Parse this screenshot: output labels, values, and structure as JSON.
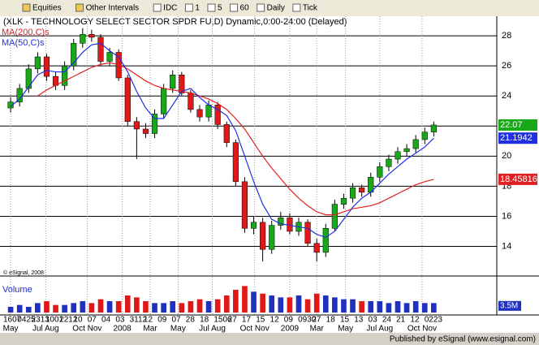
{
  "toolbar": {
    "items": [
      "Equities",
      "Other Intervals",
      "IDC",
      "1",
      "5",
      "60",
      "Daily",
      "Tick"
    ]
  },
  "chart_data": {
    "type": "candlestick",
    "title": "(XLK - TECHNOLOGY SELECT SECTOR SPDR FU,D) Dynamic,0:00-24:00 (Delayed)",
    "copyright": "© eSignal, 2008",
    "footer": "Published by eSignal (www.esignal.com)",
    "up_color": "#18a818",
    "down_color": "#e01818",
    "xlim": [
      -1,
      54
    ],
    "ylim": [
      12.3,
      29.3
    ],
    "yticks": [
      14,
      16,
      18,
      20,
      22,
      24,
      26,
      28
    ],
    "grid": true,
    "open": [
      23.2,
      23.6,
      24.5,
      25.8,
      26.6,
      25.3,
      24.7,
      26.0,
      27.5,
      28.1,
      27.9,
      26.3,
      26.9,
      25.2,
      22.3,
      21.8,
      21.5,
      22.8,
      24.5,
      25.4,
      24.2,
      23.1,
      22.6,
      23.4,
      22.1,
      20.9,
      18.3,
      15.2,
      15.6,
      13.8,
      15.4,
      15.9,
      15.0,
      15.6,
      14.2,
      13.6,
      15.2,
      16.8,
      17.2,
      17.9,
      17.6,
      18.6,
      19.3,
      19.8,
      20.3,
      20.5,
      21.1,
      21.6
    ],
    "high": [
      23.9,
      24.8,
      26.1,
      26.9,
      26.8,
      25.6,
      26.3,
      27.8,
      28.5,
      28.4,
      28.1,
      27.2,
      27.1,
      25.4,
      22.6,
      22.2,
      23.1,
      24.8,
      25.7,
      25.6,
      24.4,
      23.4,
      23.7,
      23.6,
      22.3,
      21.1,
      18.6,
      16.0,
      15.9,
      15.7,
      16.3,
      16.2,
      15.9,
      15.8,
      14.5,
      15.5,
      17.1,
      17.5,
      18.2,
      18.1,
      18.9,
      19.6,
      20.1,
      20.6,
      20.8,
      21.4,
      21.9,
      22.3
    ],
    "low": [
      22.9,
      23.3,
      24.2,
      25.5,
      25.0,
      24.4,
      24.4,
      25.7,
      27.2,
      27.6,
      26.0,
      26.0,
      25.0,
      22.0,
      19.8,
      21.2,
      21.2,
      22.5,
      24.2,
      24.0,
      22.9,
      22.3,
      22.3,
      21.8,
      20.6,
      18.0,
      14.9,
      14.8,
      13.0,
      13.5,
      15.1,
      14.8,
      14.7,
      14.0,
      13.0,
      13.3,
      15.0,
      16.5,
      16.9,
      17.3,
      17.3,
      18.3,
      19.0,
      19.5,
      20.0,
      20.2,
      20.8,
      21.3
    ],
    "close": [
      23.6,
      24.5,
      25.8,
      26.6,
      25.3,
      24.7,
      26.0,
      27.5,
      28.1,
      27.9,
      26.3,
      26.9,
      25.2,
      22.3,
      21.8,
      21.5,
      22.8,
      24.5,
      25.4,
      24.2,
      23.1,
      22.6,
      23.4,
      22.1,
      20.9,
      18.3,
      15.2,
      15.6,
      13.8,
      15.4,
      15.9,
      15.0,
      15.6,
      14.2,
      13.6,
      15.2,
      16.8,
      17.2,
      17.9,
      17.6,
      18.6,
      19.3,
      19.8,
      20.3,
      20.5,
      21.1,
      21.6,
      22.07
    ],
    "series": [
      {
        "name": "MA(200,C)s",
        "color": "#e02020",
        "values": [
          null,
          null,
          null,
          24.0,
          24.4,
          24.7,
          25.0,
          25.3,
          25.6,
          25.9,
          26.1,
          26.2,
          26.1,
          25.8,
          25.4,
          25.0,
          24.7,
          24.5,
          24.4,
          24.3,
          24.2,
          24.0,
          23.8,
          23.5,
          23.1,
          22.5,
          21.8,
          20.9,
          20.0,
          19.2,
          18.5,
          17.8,
          17.2,
          16.7,
          16.3,
          16.1,
          16.1,
          16.3,
          16.5,
          16.6,
          16.7,
          16.9,
          17.2,
          17.5,
          17.8,
          18.1,
          18.3,
          18.45816
        ]
      },
      {
        "name": "MA(50,C)s",
        "color": "#2030e0",
        "values": [
          23.3,
          23.8,
          24.6,
          25.4,
          25.7,
          25.6,
          25.6,
          26.2,
          26.9,
          27.4,
          27.5,
          27.0,
          26.6,
          25.6,
          24.3,
          23.2,
          22.5,
          22.5,
          23.4,
          24.3,
          24.5,
          23.9,
          23.4,
          23.1,
          22.7,
          21.7,
          20.0,
          18.3,
          16.8,
          15.8,
          15.5,
          15.4,
          15.3,
          15.2,
          14.8,
          14.6,
          15.0,
          15.8,
          16.6,
          17.2,
          17.6,
          18.2,
          18.8,
          19.3,
          19.8,
          20.2,
          20.6,
          21.1942
        ]
      }
    ],
    "price_tags": [
      {
        "value": 22.07,
        "color": "#18a818"
      },
      {
        "value": 21.1942,
        "color": "#2030e0"
      },
      {
        "value": 18.45816,
        "color": "#e02020"
      }
    ],
    "xticks": [
      {
        "value": 0,
        "label": "May"
      },
      {
        "value": 3.9,
        "label": "Jul Aug"
      },
      {
        "value": 8.5,
        "label": "Oct Nov"
      },
      {
        "value": 12.4,
        "label": "2008"
      },
      {
        "value": 15.5,
        "label": "Mar"
      },
      {
        "value": 18.6,
        "label": "May"
      },
      {
        "value": 22.4,
        "label": "Jul Aug"
      },
      {
        "value": 27.1,
        "label": "Oct Nov"
      },
      {
        "value": 31,
        "label": "2009"
      },
      {
        "value": 34,
        "label": "Mar"
      },
      {
        "value": 37.2,
        "label": "May"
      },
      {
        "value": 41,
        "label": "Jul Aug"
      },
      {
        "value": 45.7,
        "label": "Oct Nov"
      }
    ],
    "day_labels": [
      "1607",
      "0425",
      "2313",
      "1001",
      "2212",
      "10",
      "07",
      "04",
      "03",
      "3112",
      "12",
      "09",
      "07",
      "28",
      "18",
      "1506",
      "27",
      "17",
      "15",
      "12",
      "09",
      "0930",
      "27",
      "18",
      "15",
      "13",
      "03",
      "24",
      "21",
      "12",
      "0223"
    ],
    "volume": {
      "name": "Volume",
      "color": "#2030c0",
      "ylim": [
        0,
        15
      ],
      "yticks": [
        {
          "value": 3.5,
          "label": "3.5M"
        }
      ],
      "values": [
        3,
        4,
        3,
        5,
        6,
        4,
        4,
        5,
        6,
        5,
        7,
        6,
        6,
        9,
        8,
        6,
        5,
        5,
        6,
        5,
        6,
        7,
        6,
        7,
        9,
        12,
        14,
        11,
        10,
        9,
        8,
        8,
        9,
        7,
        10,
        9,
        8,
        7,
        7,
        6,
        6,
        6,
        5,
        6,
        5,
        6,
        5,
        5
      ]
    }
  }
}
